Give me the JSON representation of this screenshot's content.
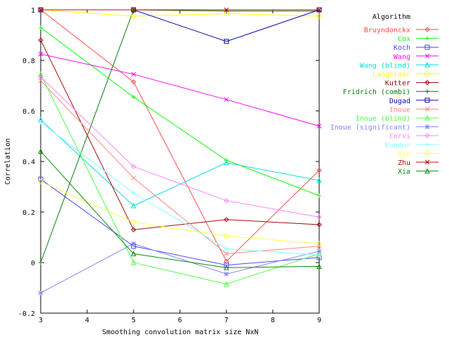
{
  "chart_data": {
    "type": "line",
    "xlabel": "Smoothing convolution matrix size NxN",
    "ylabel": "Correlation",
    "xlim": [
      3,
      9
    ],
    "ylim": [
      -0.2,
      1
    ],
    "x_ticks": [
      3,
      4,
      5,
      6,
      7,
      8,
      9
    ],
    "x_tick_labels": [
      "3",
      "4",
      "5",
      "6",
      "7",
      "8",
      "9"
    ],
    "y_ticks": [
      -0.2,
      0,
      0.2,
      0.4,
      0.6,
      0.8,
      1
    ],
    "y_tick_labels": [
      "-0.2",
      "0",
      "0.2",
      "0.4",
      "0.6",
      "0.8",
      "1"
    ],
    "grid": false,
    "legend_title": "Algorithm",
    "legend_position": "top-right",
    "x": [
      3,
      5,
      7,
      9
    ],
    "series": [
      {
        "name": "Bruyndonckx",
        "color": "#ff4444",
        "marker": "diamond",
        "values": [
          1.0,
          0.715,
          0.005,
          0.365
        ]
      },
      {
        "name": "Cox",
        "color": "#00ff00",
        "marker": "plus",
        "values": [
          0.93,
          0.655,
          0.405,
          0.265
        ]
      },
      {
        "name": "Koch",
        "color": "#4444ff",
        "marker": "square",
        "values": [
          0.33,
          0.065,
          -0.01,
          0.02
        ]
      },
      {
        "name": "Wang",
        "color": "#ff00ff",
        "marker": "cross",
        "values": [
          0.825,
          0.745,
          0.645,
          0.54
        ]
      },
      {
        "name": "Wang (blind)",
        "color": "#00dddd",
        "marker": "triangle",
        "values": [
          0.565,
          0.225,
          0.395,
          0.325
        ]
      },
      {
        "name": "Langelaar",
        "color": "#ffff00",
        "marker": "circle",
        "values": [
          1.0,
          0.975,
          0.985,
          0.975
        ]
      },
      {
        "name": "Kutter",
        "color": "#a00000",
        "marker": "diamond",
        "values": [
          0.88,
          0.13,
          0.17,
          0.15
        ]
      },
      {
        "name": "Fridrich (combi)",
        "color": "#007700",
        "marker": "plus",
        "values": [
          0.0,
          1.0,
          0.995,
          0.995
        ]
      },
      {
        "name": "Dugad",
        "color": "#0000a0",
        "marker": "square",
        "values": [
          1.0,
          1.0,
          0.875,
          1.0
        ]
      },
      {
        "name": "Inoue",
        "color": "#ff8080",
        "marker": "cross",
        "values": [
          0.72,
          0.335,
          0.035,
          0.065
        ]
      },
      {
        "name": "Inoue (blind)",
        "color": "#44ff44",
        "marker": "triangle",
        "values": [
          0.745,
          0.0,
          -0.085,
          0.035
        ]
      },
      {
        "name": "Inoue (significant)",
        "color": "#8080ff",
        "marker": "star",
        "values": [
          -0.12,
          0.075,
          -0.045,
          0.045
        ]
      },
      {
        "name": "Corvi",
        "color": "#ff80ff",
        "marker": "diamond",
        "values": [
          0.735,
          0.38,
          0.245,
          0.18
        ]
      },
      {
        "name": "Kundur",
        "color": "#80ffff",
        "marker": "plus",
        "values": [
          0.555,
          0.275,
          0.055,
          0.03
        ]
      },
      {
        "name": "Xie",
        "color": "#ffff40",
        "marker": "circle",
        "values": [
          0.32,
          0.16,
          0.105,
          0.075
        ]
      },
      {
        "name": "Zhu",
        "color": "#c00000",
        "marker": "cross",
        "values": [
          1.0,
          1.0,
          1.0,
          1.0
        ]
      },
      {
        "name": "Xia",
        "color": "#008800",
        "marker": "triangle",
        "values": [
          0.44,
          0.035,
          -0.02,
          -0.015
        ]
      }
    ]
  }
}
